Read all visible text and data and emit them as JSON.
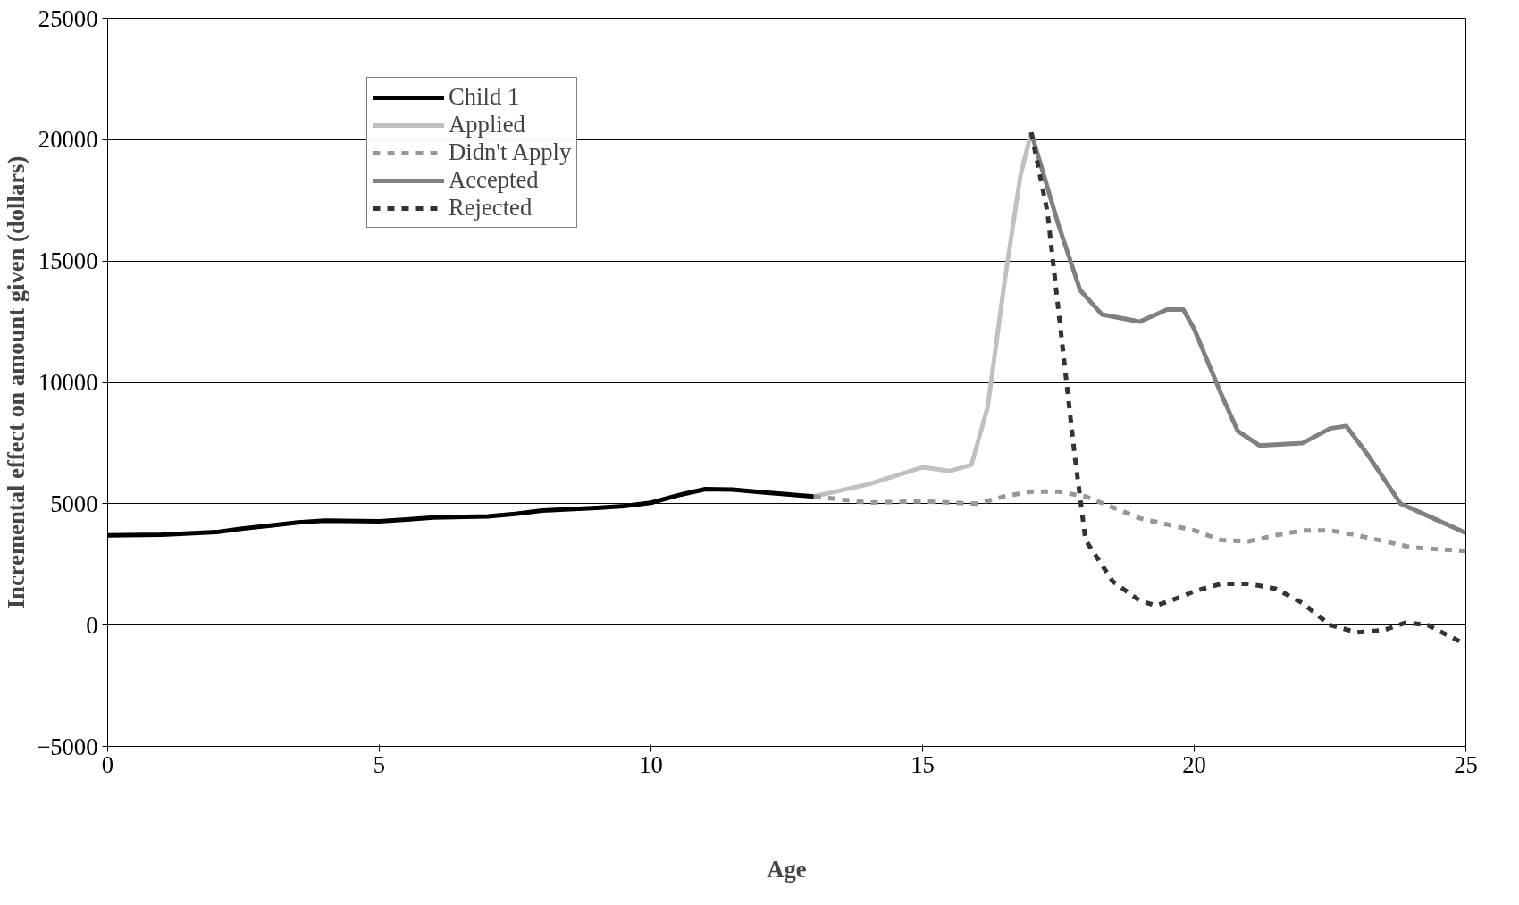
{
  "chart_data": {
    "type": "line",
    "xlabel": "Age",
    "ylabel": "Incremental effect on amount given (dollars)",
    "xlim": [
      0,
      25
    ],
    "xticks": [
      0,
      5,
      10,
      15,
      20,
      25
    ],
    "ylim": [
      -5000,
      25000
    ],
    "yticks": [
      -5000,
      0,
      5000,
      10000,
      15000,
      20000,
      25000
    ],
    "grid": "y",
    "legend": "top left",
    "series": [
      {
        "name": "Child 1",
        "color": "#000000",
        "line_style": "solid",
        "x": [
          0,
          1,
          2,
          2.5,
          3,
          3.5,
          4,
          5,
          5.5,
          6,
          7,
          7.5,
          8,
          9,
          9.5,
          10,
          10.5,
          11,
          11.5,
          12,
          13
        ],
        "values": [
          3700,
          3720,
          3830,
          3980,
          4100,
          4230,
          4300,
          4280,
          4350,
          4430,
          4480,
          4580,
          4720,
          4830,
          4900,
          5040,
          5350,
          5600,
          5580,
          5480,
          5300
        ]
      },
      {
        "name": "Applied",
        "color": "#c0c0c0",
        "line_style": "solid",
        "x": [
          13,
          14,
          15,
          15.5,
          15.9,
          16.2,
          16.5,
          16.8,
          17
        ],
        "values": [
          5300,
          5800,
          6500,
          6350,
          6600,
          9000,
          14000,
          18500,
          20300
        ]
      },
      {
        "name": "Didn't Apply",
        "color": "#969696",
        "line_style": "dashed",
        "x": [
          13,
          14,
          15,
          16,
          16.5,
          17,
          17.5,
          18,
          19,
          20,
          20.5,
          21,
          21.5,
          22,
          22.5,
          23,
          24,
          25
        ],
        "values": [
          5300,
          5050,
          5100,
          5000,
          5300,
          5500,
          5500,
          5300,
          4400,
          3900,
          3500,
          3450,
          3700,
          3900,
          3900,
          3700,
          3200,
          3050
        ]
      },
      {
        "name": "Accepted",
        "color": "#808080",
        "line_style": "solid",
        "x": [
          17,
          17.5,
          17.9,
          18.3,
          19,
          19.5,
          19.8,
          20,
          20.5,
          20.8,
          21.2,
          22,
          22.5,
          22.8,
          23.2,
          23.8,
          24.5,
          25
        ],
        "values": [
          20300,
          16500,
          13800,
          12800,
          12500,
          13000,
          13000,
          12200,
          9500,
          8000,
          7400,
          7500,
          8100,
          8200,
          7000,
          5000,
          4300,
          3800
        ]
      },
      {
        "name": "Rejected",
        "color": "#333333",
        "line_style": "dashed",
        "x": [
          17,
          17.3,
          17.5,
          17.8,
          18,
          18.5,
          19,
          19.3,
          19.8,
          20,
          20.5,
          21,
          21.5,
          22,
          22.5,
          23,
          23.5,
          23.9,
          24.3,
          25
        ],
        "values": [
          20300,
          17000,
          13000,
          7000,
          3500,
          1800,
          1000,
          800,
          1200,
          1400,
          1700,
          1700,
          1500,
          900,
          0,
          -300,
          -200,
          100,
          0,
          -800
        ]
      }
    ]
  }
}
